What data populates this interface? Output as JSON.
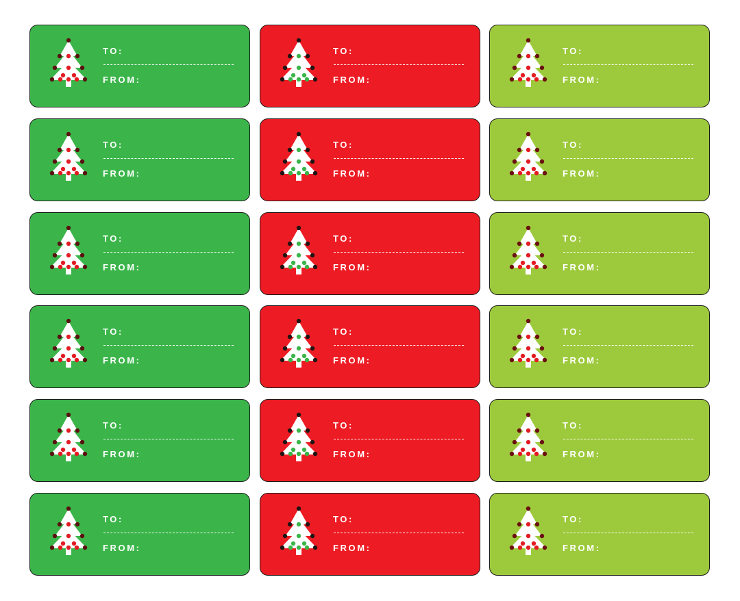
{
  "sheet": {
    "columns": [
      {
        "name": "green",
        "bg": "#3bb54a",
        "dot": "#e31b23",
        "apex": "#5a1010"
      },
      {
        "name": "red",
        "bg": "#ed1c24",
        "dot": "#3bb54a",
        "apex": "#1f1414"
      },
      {
        "name": "lime",
        "bg": "#9dca3c",
        "dot": "#e31b23",
        "apex": "#6b1010"
      }
    ],
    "rows": 6,
    "icon": "christmas-tree-icon"
  },
  "tag": {
    "to_label": "TO:",
    "from_label": "FROM:"
  }
}
